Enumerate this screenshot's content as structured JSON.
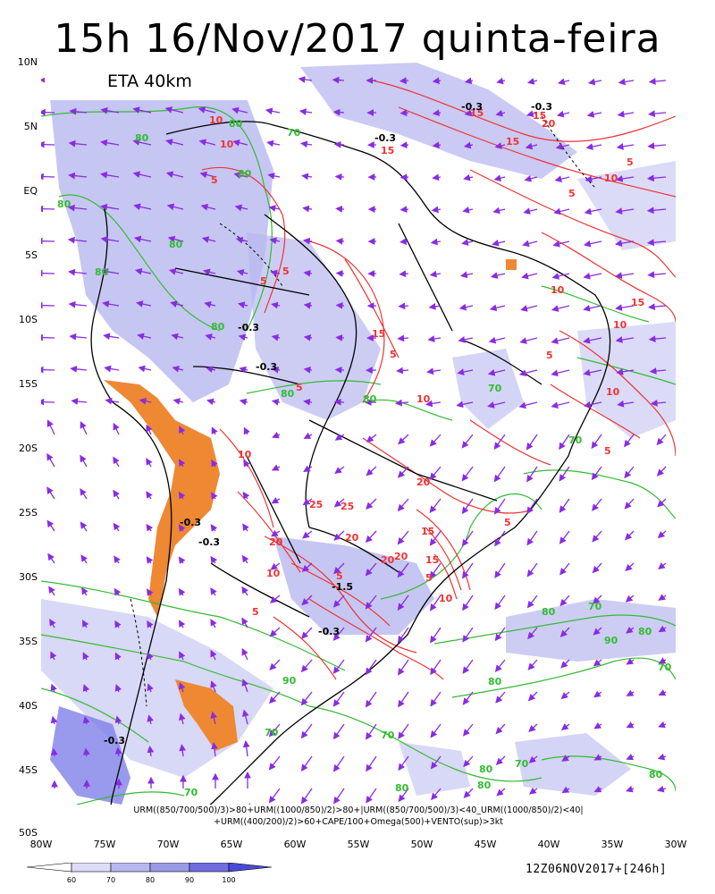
{
  "title": "15h 16/Nov/2017 quinta-feira",
  "model_label": "ETA 40km",
  "lat_labels": [
    "10N",
    "5N",
    "EQ",
    "5S",
    "10S",
    "15S",
    "20S",
    "25S",
    "30S",
    "35S",
    "40S",
    "45S",
    "50S"
  ],
  "lon_labels": [
    "80W",
    "75W",
    "70W",
    "65W",
    "60W",
    "55W",
    "50W",
    "45W",
    "40W",
    "35W",
    "30W"
  ],
  "caption_line1": "URM((850/700/500)/3)>80+URM((1000/850)/2)>80+|URM((850/700/500)/3)<40_URM((1000/850)/2)<40|",
  "caption_line2": "+URM((400/200)/2)>60+CAPE/100+Omega(500)+VENTO(sup)>3kt",
  "run_label": "12Z06NOV2017+[246h]",
  "colorbar": {
    "ticks": [
      "60",
      "70",
      "80",
      "90",
      "100"
    ],
    "colors": [
      "#ffffff",
      "#dcdcfa",
      "#b8b8f0",
      "#9a9ae8",
      "#6e6ee0",
      "#4a4ad8"
    ]
  },
  "contour_labels": {
    "green": [
      "80",
      "80",
      "70",
      "80",
      "80",
      "80",
      "80",
      "80",
      "80",
      "80",
      "70",
      "70",
      "70",
      "90",
      "80",
      "70",
      "80",
      "90",
      "70",
      "70",
      "80",
      "70",
      "80",
      "80",
      "80",
      "70",
      "80"
    ],
    "red": [
      "15",
      "15",
      "20",
      "10",
      "15",
      "10",
      "15",
      "5",
      "5",
      "5",
      "10",
      "5",
      "15",
      "5",
      "10",
      "5",
      "5",
      "10",
      "5",
      "15",
      "10",
      "10",
      "5",
      "20",
      "25",
      "20",
      "25",
      "10",
      "20",
      "15",
      "10",
      "15",
      "20",
      "5",
      "5",
      "5",
      "20",
      "5",
      "10"
    ],
    "omega": [
      "-0.3",
      "-0.3",
      "-0.3",
      "-0.3",
      "-0.3",
      "-0.3",
      "-0.3",
      "-1.5",
      "-0.3",
      "-0.3"
    ]
  },
  "colors": {
    "humidity_fill": "#b8b8f0",
    "green_contour": "#33bb33",
    "red_contour": "#ee3333",
    "cape_fill": "#ee8833",
    "wind_arrow": "#8a2be2",
    "coastline": "#000000"
  }
}
